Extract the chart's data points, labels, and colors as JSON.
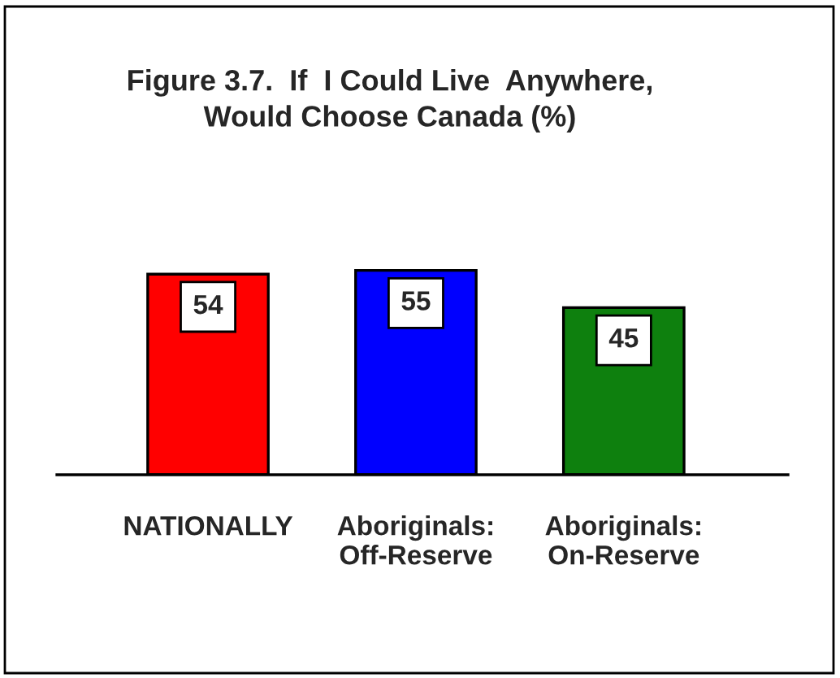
{
  "chart_data": {
    "type": "bar",
    "title": "Figure 3.7.  If  I Could Live  Anywhere,\nWould Choose Canada (%)",
    "categories": [
      "NATIONALLY",
      "Aboriginals:\nOff-Reserve",
      "Aboriginals:\nOn-Reserve"
    ],
    "values": [
      54,
      55,
      45
    ],
    "colors": [
      "#ff0000",
      "#0000ff",
      "#0e800e"
    ],
    "data_labels": true,
    "grid": false,
    "legend": false
  }
}
